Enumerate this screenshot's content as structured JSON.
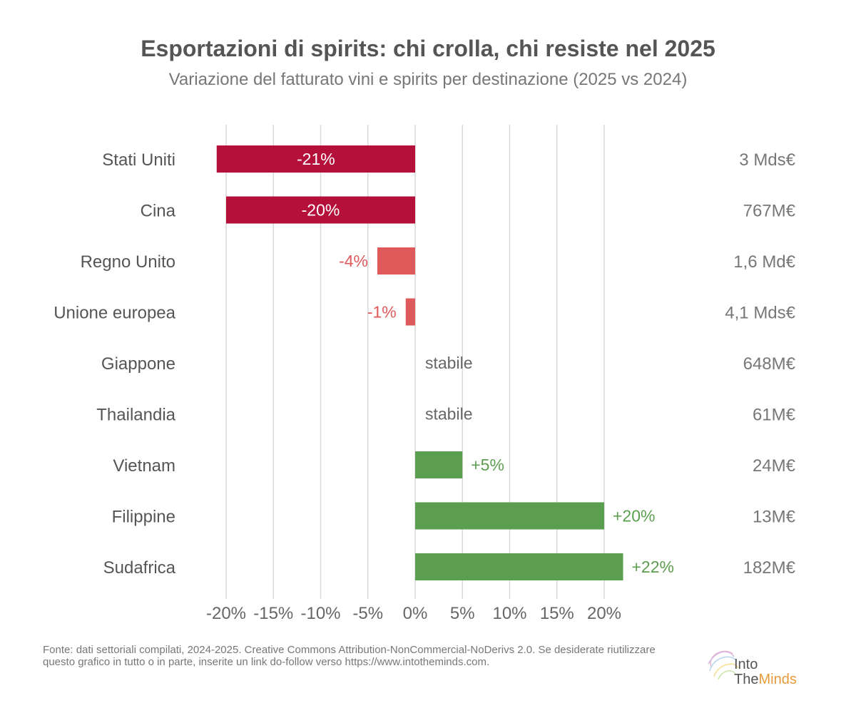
{
  "title": "Esportazioni di spirits: chi crolla, chi resiste nel 2025",
  "subtitle": "Variazione del fatturato vini e spirits per destinazione (2025 vs 2024)",
  "source": "Fonte: dati settoriali compilati, 2024-2025. Creative Commons Attribution-NonCommercial-NoDerivs 2.0. Se desiderate riutilizzare questo grafico in tutto o in parte, inserite un link do-follow verso https://www.intotheminds.com.",
  "logo": {
    "line1": "Into",
    "line2_a": "The",
    "line2_b": "Minds"
  },
  "chart_data": {
    "type": "bar",
    "orientation": "horizontal",
    "categories": [
      "Stati Uniti",
      "Cina",
      "Regno Unito",
      "Unione europea",
      "Giappone",
      "Thailandia",
      "Vietnam",
      "Filippine",
      "Sudafrica"
    ],
    "values": [
      -21,
      -20,
      -4,
      -1,
      0,
      0,
      5,
      20,
      22
    ],
    "value_labels": [
      "-21%",
      "-20%",
      "-4%",
      "-1%",
      "stabile",
      "stabile",
      "+5%",
      "+20%",
      "+22%"
    ],
    "revenue_labels": [
      "3 Mds€",
      "767M€",
      "1,6 Md€",
      "4,1 Mds€",
      "648M€",
      "61M€",
      "24M€",
      "13M€",
      "182M€"
    ],
    "xlim": [
      -20,
      20
    ],
    "x_ticks": [
      -20,
      -15,
      -10,
      -5,
      0,
      5,
      10,
      15,
      20
    ],
    "x_tick_labels": [
      "-20%",
      "-15%",
      "-10%",
      "-5%",
      "0%",
      "5%",
      "10%",
      "15%",
      "20%"
    ],
    "grid": true,
    "colors": {
      "strong_negative": "#b5103a",
      "weak_negative": "#df5a5a",
      "positive": "#5c9e4f",
      "neutral_text": "#666666",
      "grid": "#d9d9d9"
    }
  }
}
